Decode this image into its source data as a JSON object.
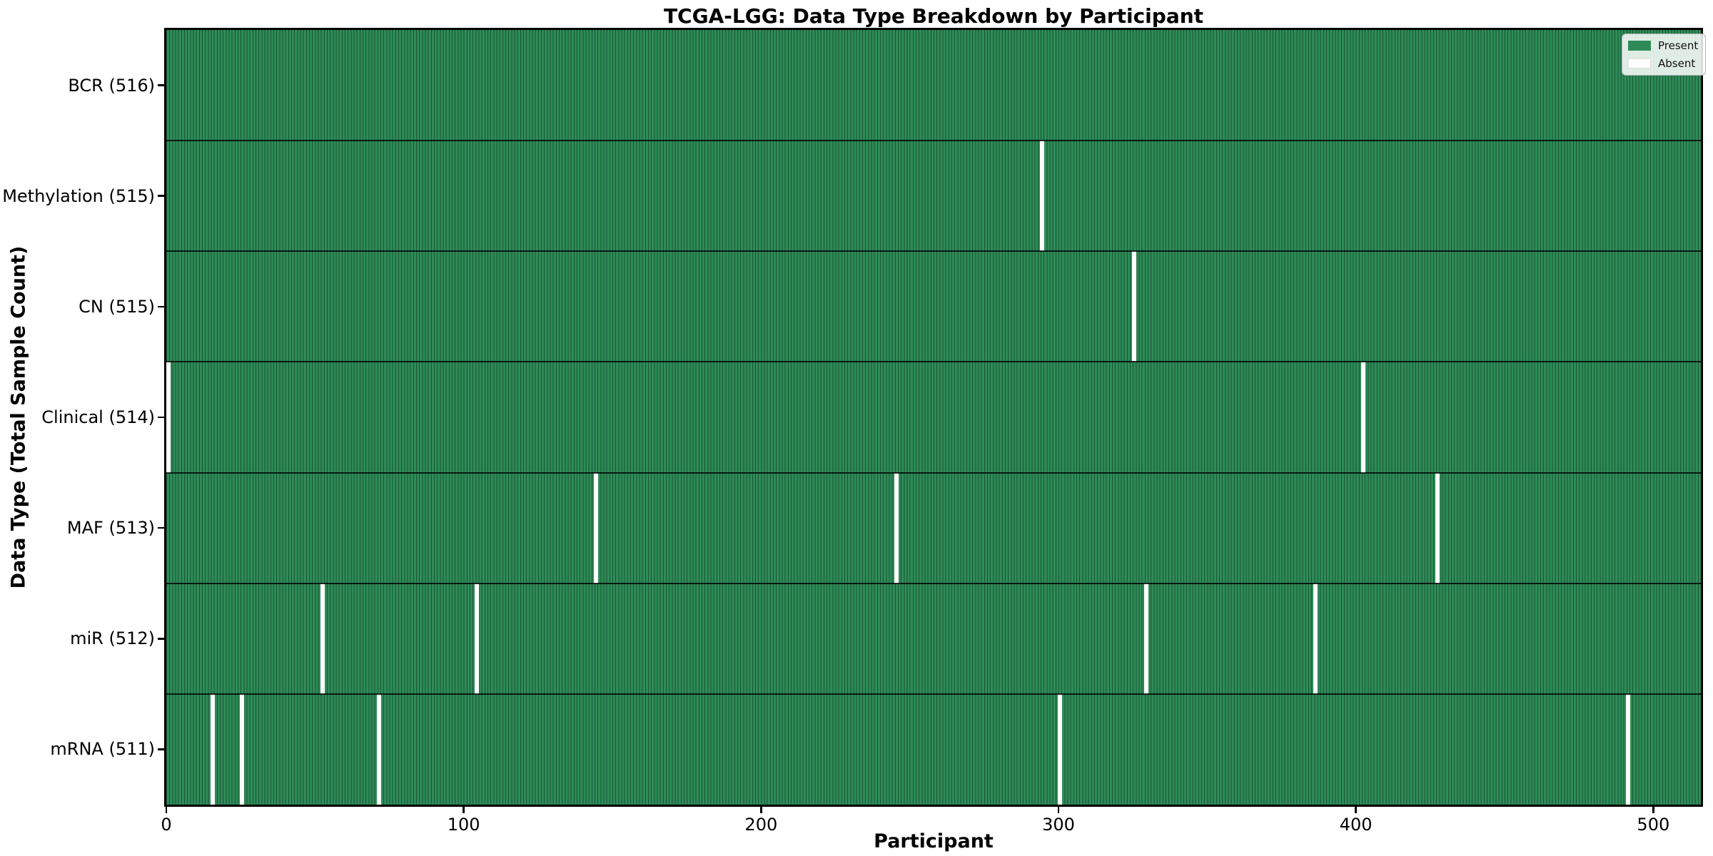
{
  "figure": {
    "title": "TCGA-LGG: Data Type Breakdown by Participant",
    "xlabel": "Participant",
    "ylabel": "Data Type (Total Sample Count)"
  },
  "legend": {
    "entries": [
      {
        "label": "Present",
        "color": "#2e8b57"
      },
      {
        "label": "Absent",
        "color": "#ffffff"
      }
    ]
  },
  "chart_data": {
    "type": "heatmap",
    "title": "TCGA-LGG: Data Type Breakdown by Participant",
    "xlabel": "Participant",
    "ylabel": "Data Type (Total Sample Count)",
    "x_ticks": [
      0,
      100,
      200,
      300,
      400,
      500
    ],
    "x_range": [
      0,
      516
    ],
    "n_participants": 516,
    "present_color": "#2e8b57",
    "absent_color": "#ffffff",
    "cell_edge_color": "#1b5636",
    "legend_position": "upper right",
    "grid": false,
    "rows": [
      {
        "label": "BCR (516)",
        "data_type": "BCR",
        "total": 516,
        "absent_participants": []
      },
      {
        "label": "Methylation (515)",
        "data_type": "Methylation",
        "total": 515,
        "absent_participants": [
          294
        ]
      },
      {
        "label": "CN (515)",
        "data_type": "CN",
        "total": 515,
        "absent_participants": [
          325
        ]
      },
      {
        "label": "Clinical (514)",
        "data_type": "Clinical",
        "total": 514,
        "absent_participants": [
          0,
          402
        ]
      },
      {
        "label": "MAF (513)",
        "data_type": "MAF",
        "total": 513,
        "absent_participants": [
          144,
          245,
          427
        ]
      },
      {
        "label": "miR (512)",
        "data_type": "miR",
        "total": 512,
        "absent_participants": [
          52,
          104,
          329,
          386
        ]
      },
      {
        "label": "mRNA (511)",
        "data_type": "mRNA",
        "total": 511,
        "absent_participants": [
          15,
          25,
          71,
          300,
          491
        ]
      }
    ]
  }
}
